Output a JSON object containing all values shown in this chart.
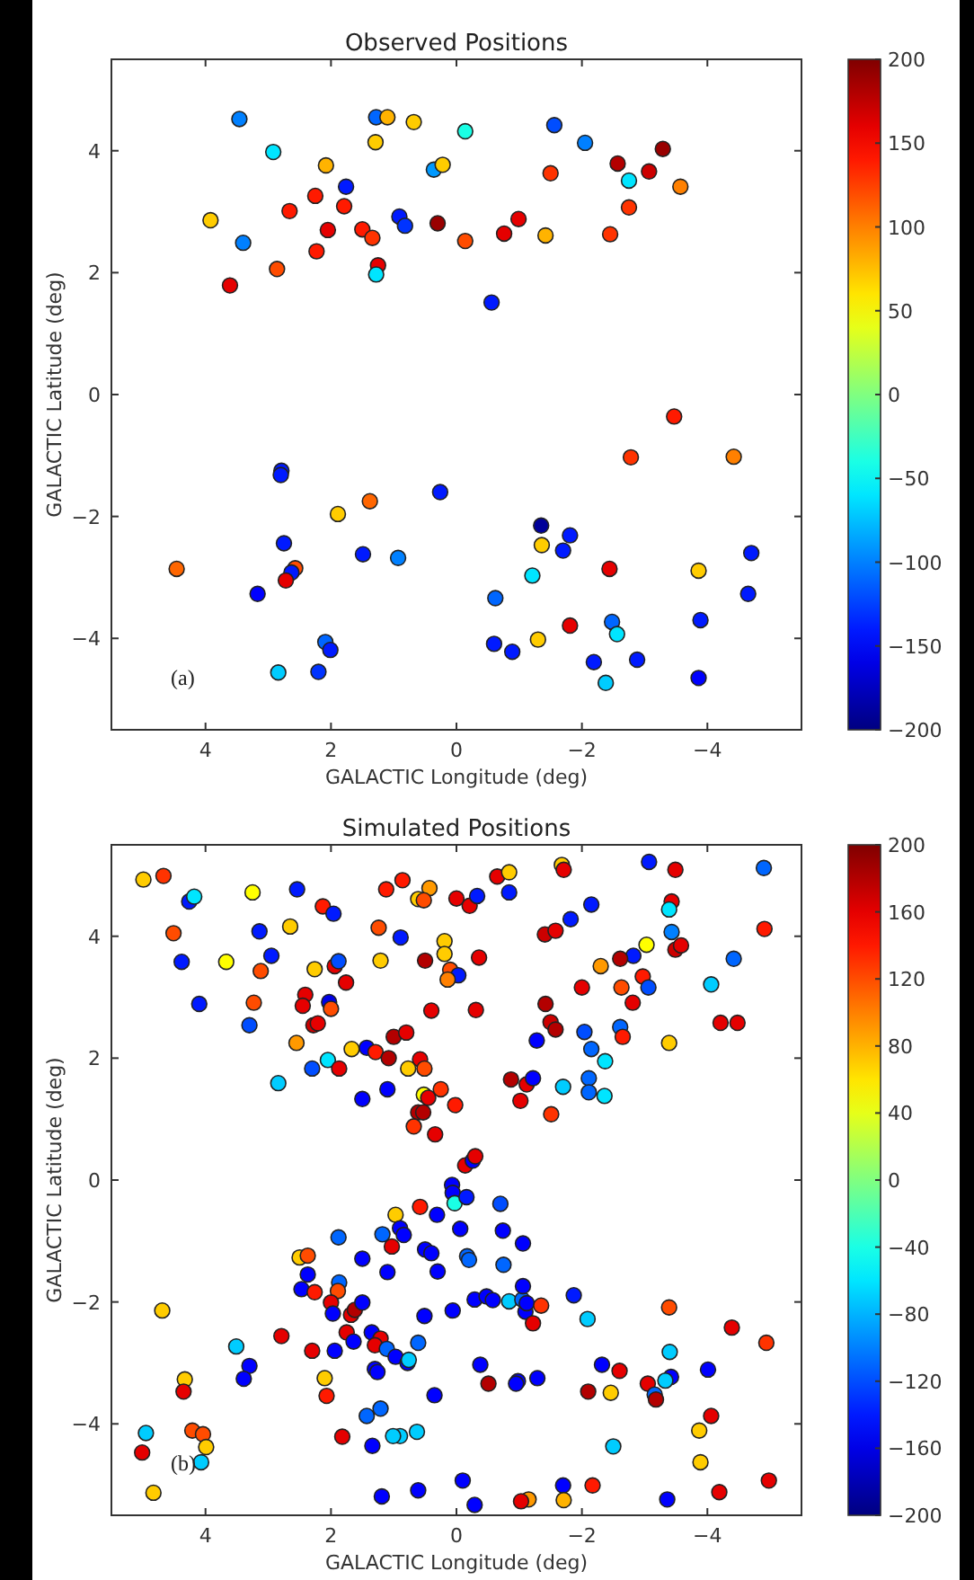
{
  "chart_data": [
    {
      "type": "scatter",
      "title": "Observed Positions",
      "xlabel": "GALACTIC Longitude (deg)",
      "ylabel": "GALACTIC Latitude (deg)",
      "annotations": [
        "(a)"
      ],
      "marker": "circle",
      "xlim": [
        5.5,
        -5.5
      ],
      "ylim": [
        -5.5,
        5.5
      ],
      "xticks": [
        4,
        2,
        0,
        -2,
        -4
      ],
      "yticks": [
        -4,
        -2,
        0,
        2,
        4
      ],
      "clim": [
        -200,
        200
      ],
      "cticks": [
        -200,
        -150,
        -100,
        -50,
        0,
        50,
        100,
        150,
        200
      ],
      "x": [
        3.46,
        2.92,
        3.92,
        3.4,
        3.61,
        2.86,
        2.66,
        2.25,
        2.08,
        1.76,
        1.79,
        2.05,
        2.23,
        1.5,
        1.34,
        1.28,
        1.1,
        1.29,
        0.68,
        1.25,
        1.28,
        0.91,
        0.82,
        0.36,
        0.22,
        0.3,
        -0.14,
        -0.14,
        -0.56,
        -0.76,
        -0.99,
        -1.42,
        -1.5,
        -1.56,
        -2.05,
        -2.45,
        -2.57,
        -2.75,
        -2.75,
        -3.07,
        -3.29,
        -3.57,
        -3.47,
        -2.78,
        -4.42,
        2.79,
        2.8,
        0.26,
        1.89,
        1.38,
        2.75,
        1.49,
        0.93,
        4.46,
        2.57,
        2.63,
        2.72,
        3.17,
        2.09,
        2.01,
        2.84,
        2.2,
        -1.35,
        -1.36,
        -1.81,
        -1.7,
        -1.21,
        -2.44,
        -3.86,
        -4.7,
        -4.65,
        -0.62,
        -0.6,
        -0.89,
        -1.3,
        -1.81,
        -2.48,
        -2.56,
        -2.19,
        -2.88,
        -2.38,
        -3.89,
        -3.86
      ],
      "values": [
        4.52,
        3.98,
        2.86,
        2.49,
        1.79,
        2.06,
        3.01,
        3.26,
        3.76,
        3.41,
        3.09,
        2.7,
        2.35,
        2.71,
        2.57,
        4.55,
        4.55,
        4.14,
        4.47,
        2.12,
        1.97,
        2.92,
        2.77,
        3.69,
        3.77,
        2.81,
        4.32,
        2.52,
        1.51,
        2.64,
        2.88,
        2.61,
        3.63,
        4.42,
        4.13,
        2.63,
        3.79,
        3.51,
        3.07,
        3.66,
        4.03,
        3.41,
        -0.36,
        -1.03,
        -1.02,
        -1.25,
        -1.32,
        -1.6,
        -1.96,
        -1.75,
        -2.44,
        -2.62,
        -2.68,
        -2.86,
        -2.85,
        -2.92,
        -3.05,
        -3.27,
        -4.06,
        -4.19,
        -4.56,
        -4.55,
        -2.15,
        -2.47,
        -2.31,
        -2.56,
        -2.97,
        -2.86,
        -2.89,
        -2.6,
        -3.27,
        -3.34,
        -4.09,
        -4.22,
        -4.02,
        -3.79,
        -3.73,
        -3.93,
        -4.39,
        -4.35,
        -4.73,
        -3.7,
        -4.65
      ],
      "cvalues": [
        -100,
        -60,
        70,
        -100,
        160,
        120,
        140,
        140,
        80,
        -140,
        140,
        160,
        140,
        140,
        130,
        -110,
        80,
        70,
        70,
        160,
        -60,
        -140,
        -130,
        -90,
        70,
        190,
        -40,
        120,
        -140,
        160,
        160,
        80,
        130,
        -120,
        -100,
        130,
        180,
        -60,
        130,
        170,
        190,
        100,
        140,
        130,
        100,
        -140,
        -140,
        -140,
        70,
        110,
        -140,
        -140,
        -100,
        110,
        120,
        -140,
        160,
        -150,
        -110,
        -140,
        -70,
        -130,
        -190,
        70,
        -140,
        -140,
        -60,
        160,
        70,
        -140,
        -140,
        -110,
        -140,
        -140,
        70,
        160,
        -110,
        -60,
        -140,
        -140,
        -70,
        -140,
        -150
      ]
    },
    {
      "type": "scatter",
      "title": "Simulated Positions",
      "xlabel": "GALACTIC Longitude (deg)",
      "ylabel": "GALACTIC Latitude (deg)",
      "annotations": [
        "(b)"
      ],
      "marker": "circle",
      "xlim": [
        5.5,
        -5.5
      ],
      "ylim": [
        -5.5,
        5.5
      ],
      "xticks": [
        4,
        2,
        0,
        -2,
        -4
      ],
      "yticks": [
        -4,
        -2,
        0,
        2,
        4
      ],
      "clim": [
        -200,
        200
      ],
      "cticks": [
        -200,
        -160,
        -120,
        -80,
        -40,
        0,
        40,
        80,
        120,
        160,
        200
      ],
      "x": [
        4.99,
        4.67,
        4.26,
        4.18,
        3.25,
        2.54,
        2.13,
        1.96,
        1.12,
        0.86,
        0.43,
        0.61,
        0.52,
        0,
        -0.21,
        -0.33,
        -0.65,
        -0.84,
        -0.84,
        -1.68,
        -1.71,
        -2.15,
        -3.07,
        -3.49,
        -4.9,
        -3.43,
        -3.39,
        4.51,
        3.14,
        2.65,
        1.24,
        0.89,
        0.19,
        0.19,
        0.5,
        -0.36,
        -1.41,
        -1.58,
        -1.82,
        -4.91,
        -3.43,
        -3.49,
        -3.58,
        -3.03,
        -2.82,
        -2.61,
        -4.42,
        4.38,
        3.67,
        2.95,
        3.12,
        2.26,
        1.94,
        1.88,
        1.21,
        0.1,
        -0.03,
        0.14,
        1.76,
        -2.3,
        -2.97,
        -3.06,
        -2.63,
        -2.81,
        -2,
        -4.06,
        -4.21,
        -4.48,
        4.1,
        3.23,
        3.3,
        2.41,
        2.45,
        2.03,
        2,
        2.28,
        2.21,
        0.4,
        -0.31,
        -1.42,
        -1.5,
        -1.58,
        -2.04,
        -2.61,
        -2.65,
        -3.39,
        2.55,
        2.05,
        2.3,
        1.87,
        2.84,
        1.67,
        1.43,
        1.29,
        1.08,
        1,
        0.8,
        0.58,
        0.77,
        0.51,
        -1.28,
        -2.15,
        -2.37,
        1.5,
        1.1,
        0.52,
        0.45,
        0.25,
        0.02,
        0.61,
        0.53,
        0.68,
        0.34,
        -0.87,
        -1.12,
        -1.22,
        -1.02,
        -1.7,
        -2.11,
        -2.11,
        -2.36,
        -1.51,
        -0.14,
        -0.26,
        -0.3,
        0.07,
        0.06,
        0.03,
        -0.16,
        -0.7,
        0.58,
        0.31,
        0.97,
        1.18,
        1.03,
        0.9,
        0.84,
        1.88,
        -0.06,
        -0.74,
        -1.06,
        0.5,
        0.4,
        -0.17,
        -0.2,
        -0.75,
        1.5,
        1.1,
        0.3,
        2.5,
        2.37,
        2.37,
        2.47,
        2.26,
        1.87,
        1.89,
        2,
        1.97,
        1.68,
        1.62,
        1.5,
        1.75,
        1.64,
        2.79,
        2.3,
        1.94,
        1.35,
        1.21,
        1.3,
        1.11,
        0.97,
        0.78,
        0.76,
        0.61,
        1.3,
        1.26,
        0.51,
        0.06,
        -0.29,
        -0.48,
        -0.58,
        -0.84,
        -1.05,
        -1.1,
        -1.12,
        -1.06,
        -1.35,
        -1.22,
        -1.87,
        -2.09,
        -3.39,
        -4.39,
        -4.94,
        -3.4,
        -2.32,
        -2.6,
        -3.42,
        -3.33,
        -3.05,
        -3.16,
        -3.18,
        -4.01,
        -4.06,
        -3.87,
        -3.89,
        -4.19,
        -4.98,
        -3.36,
        -2.46,
        -2.1,
        -2.5,
        -2.17,
        -1.7,
        -1.71,
        -1.15,
        -1.03,
        -0.29,
        -0.1,
        0.61,
        1.19,
        -1.29,
        -0.98,
        -0.95,
        -0.51,
        -0.38,
        0.35,
        0.63,
        0.9,
        1.01,
        1.34,
        1.43,
        1.21,
        1.82,
        2.07,
        2.1,
        3.3,
        3.39,
        3.51,
        4.69,
        4.33,
        4.35,
        4.21,
        4.04,
        3.99,
        4.07,
        4.95,
        5.01,
        4.83
      ],
      "values": [
        4.93,
        4.99,
        4.57,
        4.65,
        4.72,
        4.77,
        4.49,
        4.37,
        4.77,
        4.92,
        4.79,
        4.61,
        4.59,
        4.62,
        4.5,
        4.66,
        4.98,
        5.05,
        4.72,
        5.17,
        5.09,
        4.52,
        5.22,
        5.09,
        5.12,
        4.57,
        4.44,
        4.05,
        4.08,
        4.16,
        4.14,
        3.98,
        3.92,
        3.71,
        3.6,
        3.65,
        4.03,
        4.09,
        4.28,
        4.12,
        4.07,
        3.78,
        3.85,
        3.86,
        3.68,
        3.63,
        3.63,
        3.58,
        3.58,
        3.68,
        3.43,
        3.46,
        3.51,
        3.59,
        3.6,
        3.45,
        3.36,
        3.29,
        3.24,
        3.51,
        3.34,
        3.16,
        3.16,
        2.91,
        3.16,
        3.21,
        2.58,
        2.58,
        2.89,
        2.91,
        2.54,
        3.04,
        2.86,
        2.92,
        2.81,
        2.54,
        2.57,
        2.78,
        2.79,
        2.89,
        2.59,
        2.47,
        2.43,
        2.51,
        2.35,
        2.25,
        2.25,
        1.97,
        1.83,
        1.83,
        1.59,
        2.15,
        2.17,
        2.1,
        2,
        2.35,
        2.42,
        1.98,
        1.83,
        1.83,
        2.29,
        2.15,
        1.95,
        1.33,
        1.49,
        1.4,
        1.35,
        1.49,
        1.23,
        1.11,
        1.11,
        0.88,
        0.75,
        1.65,
        1.57,
        1.67,
        1.3,
        1.53,
        1.67,
        1.44,
        1.38,
        1.08,
        0.24,
        0.32,
        0.39,
        -0.08,
        -0.21,
        -0.38,
        -0.28,
        -0.39,
        -0.44,
        -0.57,
        -0.57,
        -0.89,
        -1.09,
        -0.79,
        -0.9,
        -0.94,
        -0.8,
        -0.83,
        -1.04,
        -1.14,
        -1.2,
        -1.25,
        -1.31,
        -1.39,
        -1.29,
        -1.51,
        -1.5,
        -1.27,
        -1.24,
        -1.55,
        -1.79,
        -1.84,
        -1.68,
        -1.82,
        -2.01,
        -2.19,
        -2.21,
        -2.13,
        -2.01,
        -2.5,
        -2.65,
        -2.56,
        -2.8,
        -2.8,
        -2.5,
        -2.6,
        -2.71,
        -2.77,
        -2.9,
        -3,
        -2.95,
        -2.67,
        -3.1,
        -3.15,
        -2.23,
        -2.14,
        -1.96,
        -1.91,
        -1.97,
        -1.99,
        -1.96,
        -2.16,
        -2.02,
        -1.74,
        -2.06,
        -2.35,
        -1.89,
        -2.28,
        -2.09,
        -2.42,
        -2.67,
        -2.82,
        -3.03,
        -3.13,
        -3.23,
        -3.29,
        -3.34,
        -3.52,
        -3.6,
        -3.11,
        -3.87,
        -4.11,
        -4.63,
        -5.12,
        -4.93,
        -5.24,
        -3.49,
        -3.47,
        -4.37,
        -5.01,
        -5.01,
        -5.25,
        -5.24,
        -5.27,
        -5.33,
        -4.93,
        -5.09,
        -5.19,
        -3.25,
        -3.3,
        -3.34,
        -3.34,
        -3.03,
        -3.53,
        -4.13,
        -4.2,
        -4.2,
        -4.36,
        -3.87,
        -3.75,
        -4.21,
        -3.54,
        -3.25,
        -3.05,
        -3.26,
        -2.73,
        -2.14,
        -3.27,
        -3.47,
        -4.11,
        -4.17,
        -4.38,
        -4.63,
        -4.15,
        -4.47,
        -5.13
      ],
      "cvalues": [
        70,
        130,
        -140,
        -60,
        50,
        -140,
        140,
        -140,
        140,
        140,
        90,
        70,
        120,
        160,
        160,
        -140,
        160,
        70,
        -140,
        70,
        160,
        -140,
        -140,
        160,
        -110,
        160,
        -60,
        120,
        -140,
        70,
        120,
        -140,
        70,
        70,
        180,
        160,
        170,
        160,
        -140,
        140,
        -100,
        170,
        160,
        50,
        -140,
        180,
        -110,
        -140,
        50,
        -140,
        120,
        70,
        160,
        -120,
        70,
        120,
        -140,
        100,
        160,
        90,
        140,
        -120,
        120,
        160,
        160,
        -70,
        160,
        160,
        -140,
        120,
        -120,
        160,
        160,
        -160,
        120,
        170,
        160,
        160,
        160,
        180,
        170,
        180,
        -120,
        -110,
        140,
        70,
        90,
        -60,
        -120,
        160,
        -70,
        70,
        -150,
        140,
        180,
        180,
        160,
        160,
        70,
        120,
        -150,
        -110,
        -60,
        -150,
        -150,
        50,
        160,
        130,
        140,
        180,
        180,
        130,
        160,
        180,
        160,
        -150,
        160,
        -70,
        -110,
        -110,
        -60,
        130,
        160,
        -150,
        160,
        -150,
        -150,
        -40,
        -140,
        -120,
        140,
        -150,
        70,
        -110,
        160,
        -150,
        -150,
        -110,
        -150,
        -150,
        -150,
        -150,
        -150,
        -110,
        -110,
        -110,
        -150,
        -150,
        -150,
        70,
        120,
        -150,
        -150,
        140,
        -110,
        120,
        160,
        -150,
        160,
        180,
        -150,
        160,
        -150,
        160,
        160,
        -150,
        -150,
        160,
        160,
        -110,
        -150,
        -150,
        -70,
        -110,
        -150,
        -150,
        -150,
        -150,
        -150,
        -150,
        -150,
        -70,
        -110,
        -150,
        -150,
        -150,
        130,
        160,
        -140,
        -70,
        120,
        160,
        130,
        -70,
        -150,
        160,
        -150,
        -70,
        160,
        -110,
        180,
        -150,
        160,
        70,
        70,
        160,
        160,
        -150,
        70,
        180,
        -70,
        140,
        -150,
        80,
        90,
        160,
        -150,
        -150,
        -150,
        -150,
        -150,
        -150,
        -150,
        180,
        -150,
        -150,
        -70,
        -70,
        -70,
        -150,
        -110,
        -110,
        160,
        140,
        70,
        -150,
        -150,
        -70,
        70,
        70,
        160,
        120,
        120,
        70,
        -70,
        -70,
        160,
        70
      ]
    }
  ]
}
